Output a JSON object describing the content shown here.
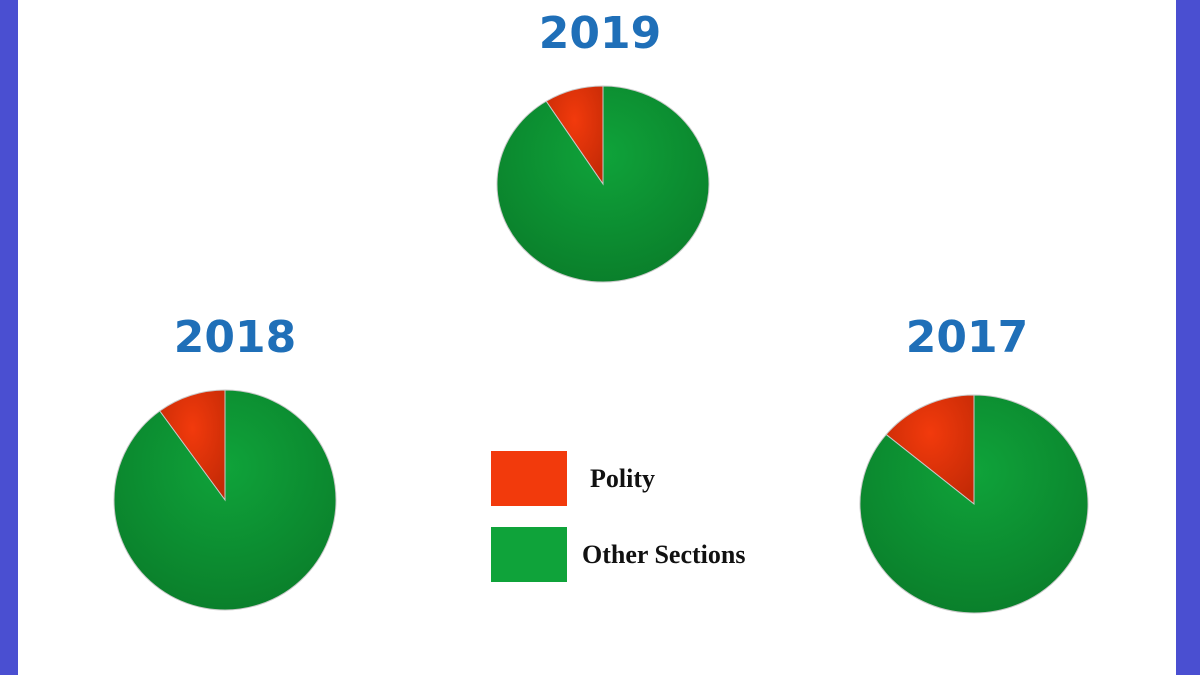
{
  "colors": {
    "polity": "#f23a0c",
    "polity_dark": "#c42a06",
    "other": "#0fa33a",
    "other_dark": "#0a7d2a",
    "title": "#1f6fb8"
  },
  "legend": [
    {
      "label": "Polity",
      "color": "#f23a0c"
    },
    {
      "label": "Other Sections",
      "color": "#0fa33a"
    }
  ],
  "chart_data": [
    {
      "type": "pie",
      "title": "2019",
      "categories": [
        "Polity",
        "Other Sections"
      ],
      "values": [
        9,
        91
      ]
    },
    {
      "type": "pie",
      "title": "2018",
      "categories": [
        "Polity",
        "Other Sections"
      ],
      "values": [
        10,
        90
      ]
    },
    {
      "type": "pie",
      "title": "2017",
      "categories": [
        "Polity",
        "Other Sections"
      ],
      "values": [
        14,
        86
      ]
    }
  ]
}
